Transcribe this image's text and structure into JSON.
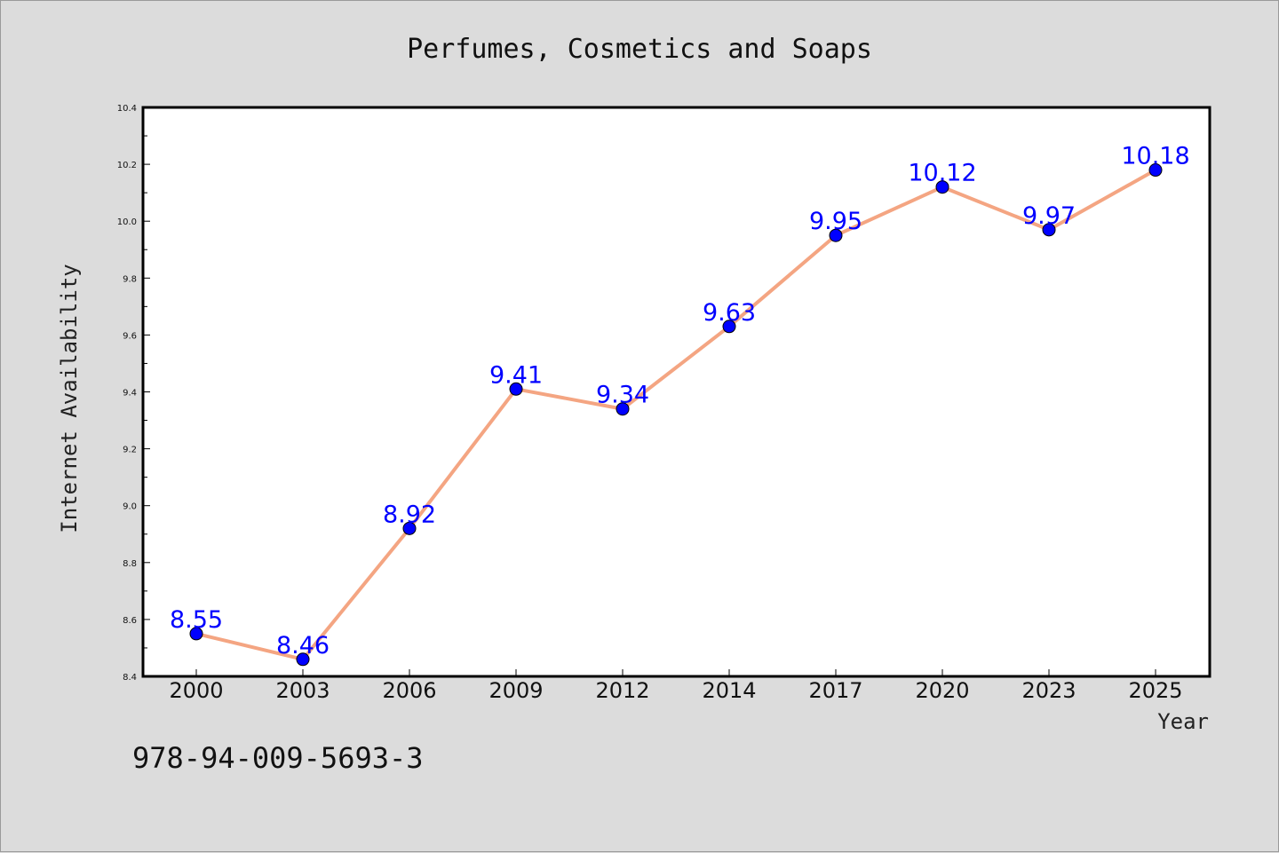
{
  "chart_data": {
    "type": "line",
    "title": "Perfumes, Cosmetics and Soaps",
    "xlabel": "Year",
    "ylabel": "Internet Availability",
    "categories": [
      "2000",
      "2003",
      "2006",
      "2009",
      "2012",
      "2014",
      "2017",
      "2020",
      "2023",
      "2025"
    ],
    "series": [
      {
        "values": [
          8.55,
          8.46,
          8.92,
          9.41,
          9.34,
          9.63,
          9.95,
          10.12,
          9.97,
          10.18
        ],
        "data_labels": [
          "8.55",
          "8.46",
          "8.92",
          "9.41",
          "9.34",
          "9.63",
          "9.95",
          "10.12",
          "9.97",
          "10.18"
        ]
      }
    ],
    "ylim": [
      8.4,
      10.4
    ],
    "yticks": [
      "8.4",
      "8.6",
      "8.8",
      "9.0",
      "9.2",
      "9.4",
      "9.6",
      "9.8",
      "10.0",
      "10.2",
      "10.4"
    ],
    "grid": false,
    "legend": "none",
    "colors": {
      "line": "#f4a582",
      "marker": "#0000ff",
      "label": "#0000ff",
      "background": "#dcdcdc",
      "plot_area": "#ffffff"
    }
  },
  "footer": {
    "isbn": "978-94-009-5693-3"
  }
}
